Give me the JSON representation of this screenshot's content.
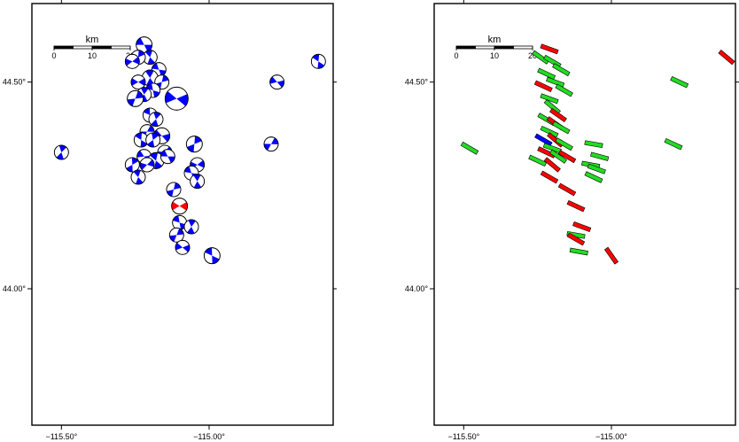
{
  "colors": {
    "frame": "#000000",
    "blue": "#0000ff",
    "red": "#ff0000",
    "green": "#22dd22",
    "background": "#ffffff"
  },
  "scale_bar": {
    "title": "km",
    "labels": [
      "0",
      "10",
      "20"
    ]
  },
  "axes": {
    "x_ticks": [
      "−115.50°",
      "−115.00°"
    ],
    "y_ticks": [
      "44.50°",
      "44.00°"
    ]
  },
  "left_map": {
    "symbol": "focal-mechanism-beachball",
    "beachballs": [
      {
        "lon": -115.22,
        "lat": 44.59,
        "color": "blue"
      },
      {
        "lon": -115.2,
        "lat": 44.56,
        "color": "blue"
      },
      {
        "lon": -115.24,
        "lat": 44.56,
        "color": "blue"
      },
      {
        "lon": -115.26,
        "lat": 44.55,
        "color": "blue"
      },
      {
        "lon": -115.17,
        "lat": 44.53,
        "color": "blue"
      },
      {
        "lon": -115.2,
        "lat": 44.51,
        "color": "blue"
      },
      {
        "lon": -115.16,
        "lat": 44.5,
        "color": "blue"
      },
      {
        "lon": -115.24,
        "lat": 44.5,
        "color": "blue"
      },
      {
        "lon": -115.19,
        "lat": 44.48,
        "color": "blue"
      },
      {
        "lon": -115.22,
        "lat": 44.47,
        "color": "blue"
      },
      {
        "lon": -115.25,
        "lat": 44.46,
        "color": "blue"
      },
      {
        "lon": -115.11,
        "lat": 44.46,
        "color": "blue"
      },
      {
        "lon": -115.2,
        "lat": 44.42,
        "color": "blue"
      },
      {
        "lon": -115.18,
        "lat": 44.41,
        "color": "blue"
      },
      {
        "lon": -115.21,
        "lat": 44.38,
        "color": "blue"
      },
      {
        "lon": -115.16,
        "lat": 44.37,
        "color": "blue"
      },
      {
        "lon": -115.23,
        "lat": 44.36,
        "color": "blue"
      },
      {
        "lon": -115.19,
        "lat": 44.36,
        "color": "blue"
      },
      {
        "lon": -115.15,
        "lat": 44.33,
        "color": "blue"
      },
      {
        "lon": -115.22,
        "lat": 44.32,
        "color": "blue"
      },
      {
        "lon": -115.18,
        "lat": 44.31,
        "color": "blue"
      },
      {
        "lon": -115.26,
        "lat": 44.3,
        "color": "blue"
      },
      {
        "lon": -115.21,
        "lat": 44.3,
        "color": "blue"
      },
      {
        "lon": -115.14,
        "lat": 44.32,
        "color": "blue"
      },
      {
        "lon": -115.24,
        "lat": 44.27,
        "color": "blue"
      },
      {
        "lon": -115.05,
        "lat": 44.35,
        "color": "blue"
      },
      {
        "lon": -115.04,
        "lat": 44.3,
        "color": "blue"
      },
      {
        "lon": -115.06,
        "lat": 44.28,
        "color": "blue"
      },
      {
        "lon": -115.04,
        "lat": 44.26,
        "color": "blue"
      },
      {
        "lon": -115.12,
        "lat": 44.24,
        "color": "blue"
      },
      {
        "lon": -115.1,
        "lat": 44.2,
        "color": "red"
      },
      {
        "lon": -115.1,
        "lat": 44.16,
        "color": "blue"
      },
      {
        "lon": -115.06,
        "lat": 44.15,
        "color": "blue"
      },
      {
        "lon": -115.11,
        "lat": 44.13,
        "color": "blue"
      },
      {
        "lon": -115.09,
        "lat": 44.1,
        "color": "blue"
      },
      {
        "lon": -114.99,
        "lat": 44.08,
        "color": "blue"
      },
      {
        "lon": -115.5,
        "lat": 44.33,
        "color": "blue"
      },
      {
        "lon": -114.79,
        "lat": 44.35,
        "color": "blue"
      },
      {
        "lon": -114.77,
        "lat": 44.5,
        "color": "blue"
      },
      {
        "lon": -114.63,
        "lat": 44.55,
        "color": "blue"
      }
    ]
  },
  "right_map": {
    "symbol": "stress-axis-bar",
    "bars": [
      {
        "lon": -115.21,
        "lat": 44.58,
        "angle": 20,
        "color": "red"
      },
      {
        "lon": -115.24,
        "lat": 44.56,
        "angle": 35,
        "color": "green"
      },
      {
        "lon": -115.2,
        "lat": 44.55,
        "angle": 30,
        "color": "green"
      },
      {
        "lon": -115.17,
        "lat": 44.53,
        "angle": 30,
        "color": "green"
      },
      {
        "lon": -115.22,
        "lat": 44.52,
        "angle": 25,
        "color": "green"
      },
      {
        "lon": -115.19,
        "lat": 44.5,
        "angle": 20,
        "color": "green"
      },
      {
        "lon": -115.23,
        "lat": 44.49,
        "angle": 25,
        "color": "red"
      },
      {
        "lon": -115.16,
        "lat": 44.48,
        "angle": 30,
        "color": "green"
      },
      {
        "lon": -115.21,
        "lat": 44.46,
        "angle": 20,
        "color": "green"
      },
      {
        "lon": -115.2,
        "lat": 44.44,
        "angle": 40,
        "color": "green"
      },
      {
        "lon": -115.18,
        "lat": 44.42,
        "angle": 35,
        "color": "red"
      },
      {
        "lon": -115.22,
        "lat": 44.41,
        "angle": 30,
        "color": "green"
      },
      {
        "lon": -115.19,
        "lat": 44.4,
        "angle": 35,
        "color": "red"
      },
      {
        "lon": -115.17,
        "lat": 44.39,
        "angle": 30,
        "color": "green"
      },
      {
        "lon": -115.21,
        "lat": 44.38,
        "angle": 25,
        "color": "green"
      },
      {
        "lon": -115.23,
        "lat": 44.36,
        "angle": 30,
        "color": "blue"
      },
      {
        "lon": -115.19,
        "lat": 44.36,
        "angle": 40,
        "color": "red"
      },
      {
        "lon": -115.16,
        "lat": 44.35,
        "angle": 30,
        "color": "green"
      },
      {
        "lon": -115.2,
        "lat": 44.34,
        "angle": 20,
        "color": "green"
      },
      {
        "lon": -115.22,
        "lat": 44.33,
        "angle": 25,
        "color": "red"
      },
      {
        "lon": -115.18,
        "lat": 44.32,
        "angle": 35,
        "color": "green"
      },
      {
        "lon": -115.15,
        "lat": 44.32,
        "angle": 30,
        "color": "red"
      },
      {
        "lon": -115.25,
        "lat": 44.31,
        "angle": 25,
        "color": "green"
      },
      {
        "lon": -115.2,
        "lat": 44.3,
        "angle": 40,
        "color": "red"
      },
      {
        "lon": -115.06,
        "lat": 44.35,
        "angle": 10,
        "color": "green"
      },
      {
        "lon": -115.04,
        "lat": 44.32,
        "angle": 15,
        "color": "green"
      },
      {
        "lon": -115.07,
        "lat": 44.3,
        "angle": 10,
        "color": "green"
      },
      {
        "lon": -115.05,
        "lat": 44.29,
        "angle": 20,
        "color": "green"
      },
      {
        "lon": -115.06,
        "lat": 44.27,
        "angle": 25,
        "color": "green"
      },
      {
        "lon": -115.21,
        "lat": 44.27,
        "angle": 30,
        "color": "red"
      },
      {
        "lon": -115.15,
        "lat": 44.24,
        "angle": 30,
        "color": "red"
      },
      {
        "lon": -115.12,
        "lat": 44.2,
        "angle": 25,
        "color": "red"
      },
      {
        "lon": -115.1,
        "lat": 44.15,
        "angle": 20,
        "color": "red"
      },
      {
        "lon": -115.12,
        "lat": 44.13,
        "angle": 10,
        "color": "green"
      },
      {
        "lon": -115.12,
        "lat": 44.12,
        "angle": 30,
        "color": "red"
      },
      {
        "lon": -115.11,
        "lat": 44.09,
        "angle": 10,
        "color": "green"
      },
      {
        "lon": -115.0,
        "lat": 44.08,
        "angle": 55,
        "color": "red"
      },
      {
        "lon": -115.48,
        "lat": 44.34,
        "angle": 30,
        "color": "green"
      },
      {
        "lon": -114.79,
        "lat": 44.35,
        "angle": 25,
        "color": "green"
      },
      {
        "lon": -114.77,
        "lat": 44.5,
        "angle": 25,
        "color": "green"
      },
      {
        "lon": -114.61,
        "lat": 44.56,
        "angle": 40,
        "color": "red"
      }
    ]
  }
}
